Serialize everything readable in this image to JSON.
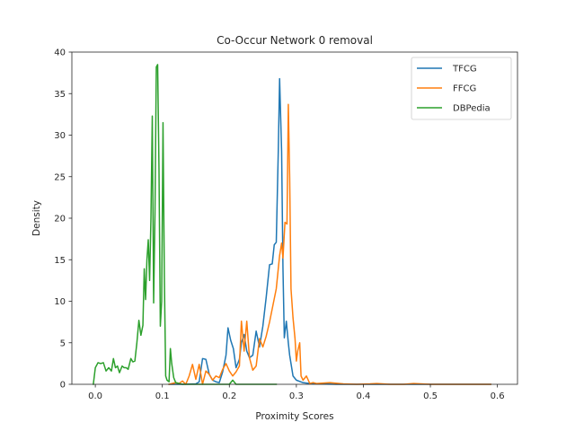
{
  "chart_data": {
    "type": "line",
    "title": "Co-Occur Network 0 removal",
    "xlabel": "Proximity Scores",
    "ylabel": "Density",
    "xlim": [
      -0.035,
      0.63
    ],
    "ylim": [
      0,
      40
    ],
    "xticks": [
      0.0,
      0.1,
      0.2,
      0.3,
      0.4,
      0.5,
      0.6
    ],
    "xtick_labels": [
      "0.0",
      "0.1",
      "0.2",
      "0.3",
      "0.4",
      "0.5",
      "0.6"
    ],
    "yticks": [
      0,
      5,
      10,
      15,
      20,
      25,
      30,
      35,
      40
    ],
    "ytick_labels": [
      "0",
      "5",
      "10",
      "15",
      "20",
      "25",
      "30",
      "35",
      "40"
    ],
    "grid": false,
    "legend_position": "top-right",
    "series": [
      {
        "name": "TFCG",
        "color": "#1f77b4",
        "points": [
          [
            0.11,
            0.0
          ],
          [
            0.13,
            0.0
          ],
          [
            0.15,
            0.05
          ],
          [
            0.155,
            0.3
          ],
          [
            0.16,
            3.1
          ],
          [
            0.165,
            3.0
          ],
          [
            0.17,
            1.2
          ],
          [
            0.175,
            0.5
          ],
          [
            0.18,
            0.3
          ],
          [
            0.185,
            0.2
          ],
          [
            0.19,
            1.5
          ],
          [
            0.195,
            3.5
          ],
          [
            0.198,
            6.8
          ],
          [
            0.202,
            5.3
          ],
          [
            0.206,
            4.3
          ],
          [
            0.21,
            2.0
          ],
          [
            0.215,
            3.0
          ],
          [
            0.218,
            5.0
          ],
          [
            0.222,
            6.0
          ],
          [
            0.226,
            4.0
          ],
          [
            0.23,
            3.2
          ],
          [
            0.235,
            3.5
          ],
          [
            0.24,
            6.4
          ],
          [
            0.245,
            4.5
          ],
          [
            0.25,
            7.0
          ],
          [
            0.255,
            10.5
          ],
          [
            0.26,
            14.4
          ],
          [
            0.264,
            14.5
          ],
          [
            0.267,
            16.8
          ],
          [
            0.27,
            17.1
          ],
          [
            0.273,
            28.0
          ],
          [
            0.275,
            36.8
          ],
          [
            0.278,
            28.0
          ],
          [
            0.28,
            14.0
          ],
          [
            0.282,
            5.6
          ],
          [
            0.285,
            7.6
          ],
          [
            0.288,
            5.0
          ],
          [
            0.29,
            3.5
          ],
          [
            0.295,
            1.0
          ],
          [
            0.3,
            0.5
          ],
          [
            0.31,
            0.2
          ],
          [
            0.32,
            0.1
          ],
          [
            0.33,
            0.05
          ],
          [
            0.36,
            0.0
          ],
          [
            0.4,
            0.0
          ],
          [
            0.45,
            0.0
          ],
          [
            0.5,
            0.0
          ],
          [
            0.55,
            0.0
          ],
          [
            0.59,
            0.0
          ]
        ]
      },
      {
        "name": "FFCG",
        "color": "#ff7f0e",
        "points": [
          [
            0.11,
            0.0
          ],
          [
            0.12,
            0.2
          ],
          [
            0.125,
            0.1
          ],
          [
            0.13,
            0.4
          ],
          [
            0.135,
            0.0
          ],
          [
            0.14,
            1.0
          ],
          [
            0.145,
            2.4
          ],
          [
            0.15,
            0.6
          ],
          [
            0.155,
            2.4
          ],
          [
            0.16,
            0.0
          ],
          [
            0.165,
            1.6
          ],
          [
            0.17,
            1.2
          ],
          [
            0.175,
            0.5
          ],
          [
            0.18,
            1.0
          ],
          [
            0.185,
            0.8
          ],
          [
            0.19,
            1.8
          ],
          [
            0.195,
            2.5
          ],
          [
            0.2,
            1.6
          ],
          [
            0.205,
            1.0
          ],
          [
            0.21,
            1.5
          ],
          [
            0.215,
            2.2
          ],
          [
            0.218,
            7.6
          ],
          [
            0.222,
            4.0
          ],
          [
            0.226,
            7.6
          ],
          [
            0.23,
            3.2
          ],
          [
            0.235,
            1.7
          ],
          [
            0.24,
            2.2
          ],
          [
            0.245,
            5.5
          ],
          [
            0.25,
            4.5
          ],
          [
            0.255,
            5.8
          ],
          [
            0.26,
            7.5
          ],
          [
            0.265,
            9.5
          ],
          [
            0.27,
            11.5
          ],
          [
            0.275,
            15.5
          ],
          [
            0.278,
            17.0
          ],
          [
            0.28,
            15.2
          ],
          [
            0.283,
            19.5
          ],
          [
            0.286,
            19.3
          ],
          [
            0.288,
            33.7
          ],
          [
            0.29,
            25.0
          ],
          [
            0.292,
            11.5
          ],
          [
            0.295,
            8.0
          ],
          [
            0.298,
            5.5
          ],
          [
            0.3,
            2.8
          ],
          [
            0.302,
            4.0
          ],
          [
            0.305,
            5.0
          ],
          [
            0.307,
            1.0
          ],
          [
            0.31,
            0.5
          ],
          [
            0.315,
            1.0
          ],
          [
            0.32,
            0.1
          ],
          [
            0.325,
            0.2
          ],
          [
            0.33,
            0.1
          ],
          [
            0.35,
            0.2
          ],
          [
            0.37,
            0.05
          ],
          [
            0.39,
            0.0
          ],
          [
            0.41,
            0.05
          ],
          [
            0.42,
            0.1
          ],
          [
            0.44,
            0.0
          ],
          [
            0.46,
            0.0
          ],
          [
            0.475,
            0.1
          ],
          [
            0.5,
            0.0
          ],
          [
            0.55,
            0.0
          ],
          [
            0.59,
            0.0
          ]
        ]
      },
      {
        "name": "DBPedia",
        "color": "#2ca02c",
        "points": [
          [
            -0.003,
            0.0
          ],
          [
            0.0,
            2.0
          ],
          [
            0.004,
            2.6
          ],
          [
            0.008,
            2.5
          ],
          [
            0.012,
            2.6
          ],
          [
            0.016,
            1.6
          ],
          [
            0.02,
            2.0
          ],
          [
            0.024,
            1.6
          ],
          [
            0.027,
            3.1
          ],
          [
            0.03,
            2.0
          ],
          [
            0.033,
            2.2
          ],
          [
            0.036,
            1.4
          ],
          [
            0.04,
            2.2
          ],
          [
            0.043,
            2.0
          ],
          [
            0.046,
            2.0
          ],
          [
            0.049,
            1.8
          ],
          [
            0.053,
            3.1
          ],
          [
            0.056,
            2.7
          ],
          [
            0.059,
            2.8
          ],
          [
            0.062,
            5.0
          ],
          [
            0.065,
            7.7
          ],
          [
            0.068,
            5.9
          ],
          [
            0.071,
            7.1
          ],
          [
            0.073,
            13.9
          ],
          [
            0.075,
            10.2
          ],
          [
            0.077,
            15.0
          ],
          [
            0.079,
            17.4
          ],
          [
            0.081,
            12.5
          ],
          [
            0.083,
            20.0
          ],
          [
            0.085,
            32.3
          ],
          [
            0.087,
            9.8
          ],
          [
            0.089,
            20.5
          ],
          [
            0.091,
            38.2
          ],
          [
            0.093,
            38.5
          ],
          [
            0.095,
            26.0
          ],
          [
            0.097,
            7.0
          ],
          [
            0.099,
            10.0
          ],
          [
            0.101,
            31.5
          ],
          [
            0.103,
            13.0
          ],
          [
            0.105,
            1.0
          ],
          [
            0.107,
            0.5
          ],
          [
            0.11,
            0.3
          ],
          [
            0.112,
            4.3
          ],
          [
            0.114,
            2.5
          ],
          [
            0.117,
            0.8
          ],
          [
            0.12,
            0.2
          ],
          [
            0.125,
            0.1
          ],
          [
            0.13,
            0.0
          ],
          [
            0.15,
            0.0
          ],
          [
            0.2,
            0.0
          ],
          [
            0.205,
            0.5
          ],
          [
            0.21,
            0.0
          ],
          [
            0.25,
            0.0
          ],
          [
            0.27,
            0.0
          ]
        ]
      }
    ]
  }
}
